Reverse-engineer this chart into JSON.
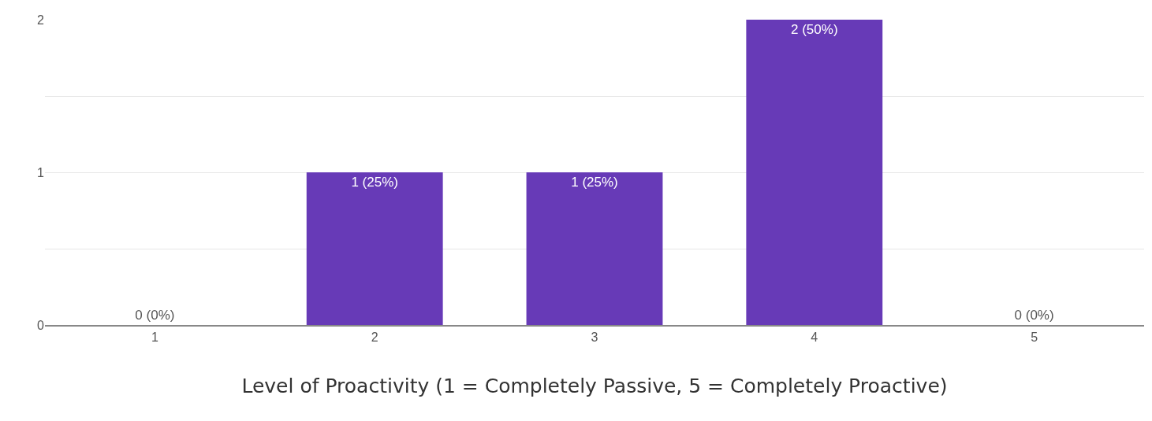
{
  "chart_data": {
    "type": "bar",
    "xlabel": "Level of Proactivity (1 = Completely Passive, 5 = Completely Proactive)",
    "categories": [
      "1",
      "2",
      "3",
      "4",
      "5"
    ],
    "values": [
      0,
      1,
      1,
      2,
      0
    ],
    "value_labels": [
      "0 (0%)",
      "1 (25%)",
      "1 (25%)",
      "2 (50%)",
      "0 (0%)"
    ],
    "color": "#673ab7",
    "ylim": [
      0,
      2
    ],
    "yticks": [
      0,
      {
        "value": 0.5,
        "label": null
      },
      1,
      {
        "value": 1.5,
        "label": null
      },
      2
    ],
    "grid": "y"
  }
}
